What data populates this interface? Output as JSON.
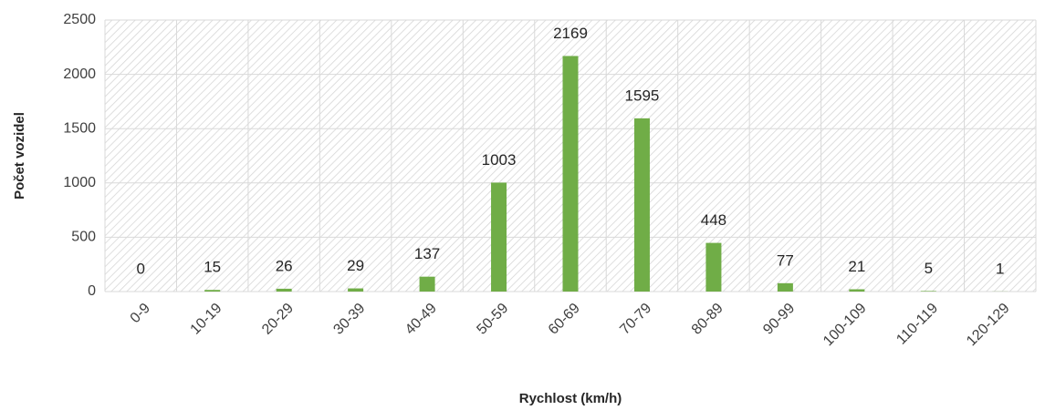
{
  "chart_data": {
    "type": "bar",
    "xlabel": "Rychlost (km/h)",
    "ylabel": "Počet vozidel",
    "categories": [
      "0-9",
      "10-19",
      "20-29",
      "30-39",
      "40-49",
      "50-59",
      "60-69",
      "70-79",
      "80-89",
      "90-99",
      "100-109",
      "110-119",
      "120-129"
    ],
    "values": [
      0,
      15,
      26,
      29,
      137,
      1003,
      2169,
      1595,
      448,
      77,
      21,
      5,
      1
    ],
    "color": "#70ad47",
    "ylim": [
      0,
      2500
    ],
    "yticks": [
      0,
      500,
      1000,
      1500,
      2000,
      2500
    ],
    "grid": true
  }
}
